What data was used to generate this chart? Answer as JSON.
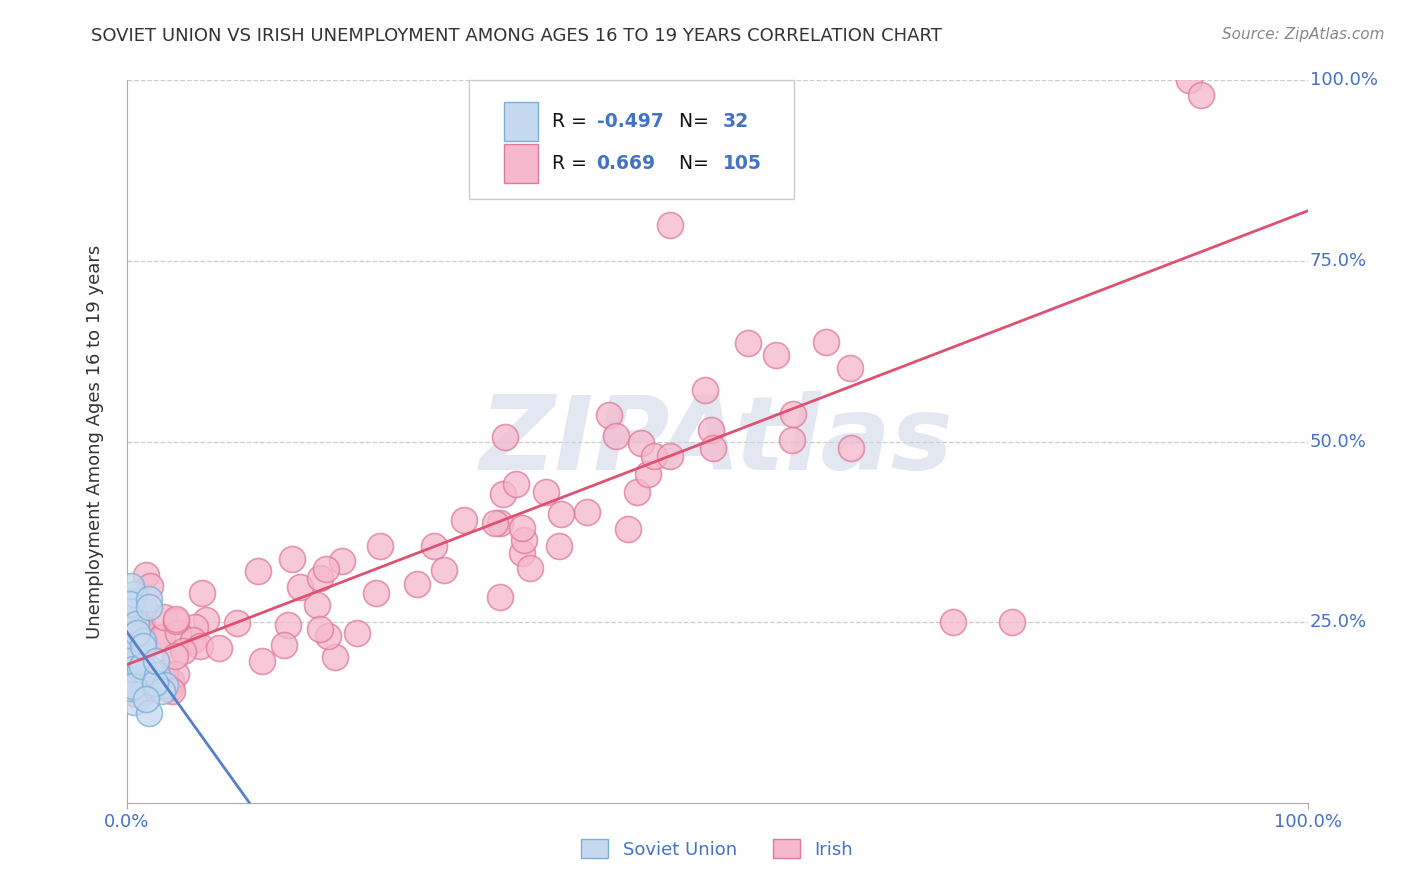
{
  "title": "SOVIET UNION VS IRISH UNEMPLOYMENT AMONG AGES 16 TO 19 YEARS CORRELATION CHART",
  "source": "Source: ZipAtlas.com",
  "ylabel": "Unemployment Among Ages 16 to 19 years",
  "xlim": [
    0.0,
    1.0
  ],
  "ylim": [
    0.0,
    1.0
  ],
  "xticks": [
    0.0,
    1.0
  ],
  "yticks": [
    0.25,
    0.5,
    0.75,
    1.0
  ],
  "xtick_labels": [
    "0.0%",
    "100.0%"
  ],
  "ytick_labels_right": [
    "25.0%",
    "50.0%",
    "75.0%",
    "100.0%"
  ],
  "soviet_R": -0.497,
  "soviet_N": 32,
  "irish_R": 0.669,
  "irish_N": 105,
  "soviet_face_color": "#c5d9f0",
  "irish_face_color": "#f5b8cc",
  "soviet_edge_color": "#7bafd4",
  "irish_edge_color": "#e07898",
  "soviet_line_color": "#5580c8",
  "irish_line_color": "#e05070",
  "legend_blue": "#4472c4",
  "background_color": "#ffffff",
  "grid_color": "#cccccc",
  "title_color": "#333333",
  "watermark_color": "#ccd5e8",
  "watermark_text": "ZIPAtlas",
  "axis_tick_color": "#4472c4",
  "marker_size": 350,
  "marker_lw": 1.2
}
